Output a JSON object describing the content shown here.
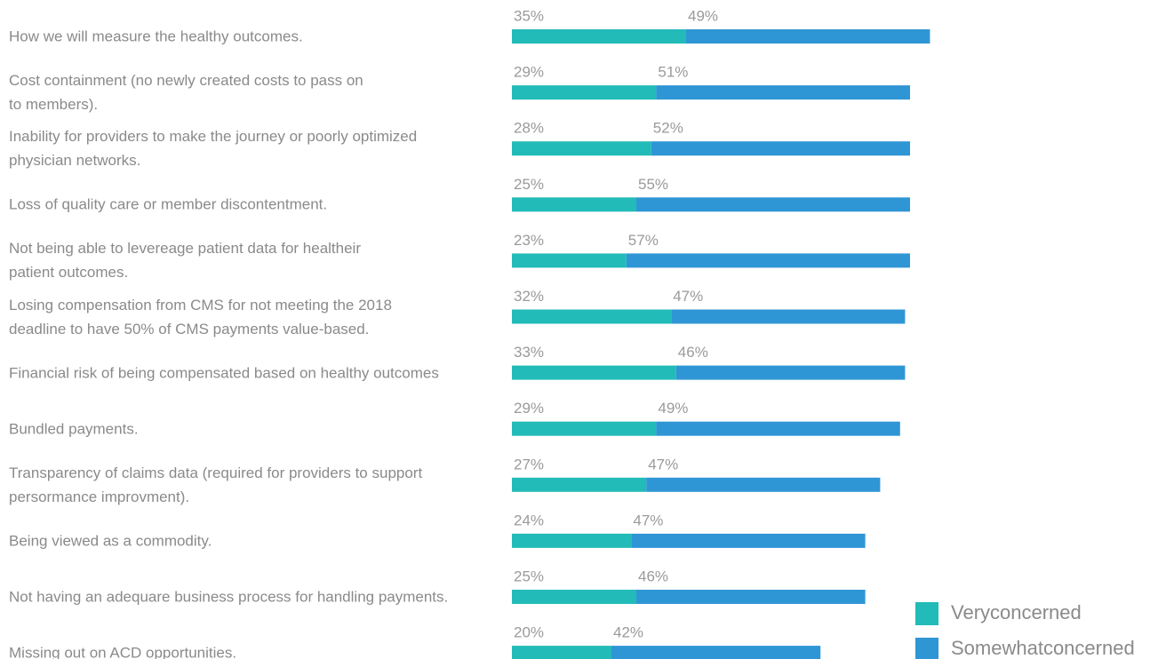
{
  "chart_data": {
    "type": "stacked-bar-horizontal",
    "categories": [
      "How we will measure the healthy outcomes.",
      "Cost containment (no newly created costs to pass on\nto members).",
      "Inability for providers to make the journey or poorly optimized\nphysician networks.",
      "Loss of quality care or member discontentment.",
      "Not being able to levereage patient data for healtheir\npatient outcomes.",
      "Losing compensation from CMS for not meeting the 2018\ndeadline to have 50% of CMS payments value-based.",
      "Financial risk of being compensated based on healthy outcomes",
      "Bundled payments.",
      "Transparency of claims data (required for providers to support\npersormance improvment).",
      "Being viewed as a commodity.",
      "Not having an adequare business process for handling payments.",
      "Missing out on ACD opportunities."
    ],
    "series": [
      {
        "name": "Veryconcerned",
        "color": "#22bbb8",
        "values": [
          35,
          29,
          28,
          25,
          23,
          32,
          33,
          29,
          27,
          24,
          25,
          20
        ],
        "value_labels": [
          "35%",
          "29%",
          "28%",
          "25%",
          "23%",
          "32%",
          "33%",
          "29%",
          "27%",
          "24%",
          "25%",
          "20%"
        ]
      },
      {
        "name": "Somewhatconcerned",
        "color": "#2f96d6",
        "values": [
          49,
          51,
          52,
          55,
          57,
          47,
          46,
          49,
          47,
          47,
          46,
          42
        ],
        "value_labels": [
          "49%",
          "51%",
          "52%",
          "55%",
          "57%",
          "47%",
          "46%",
          "49%",
          "47%",
          "47%",
          "46%",
          "42%"
        ]
      }
    ],
    "legend": "bottom-right"
  }
}
